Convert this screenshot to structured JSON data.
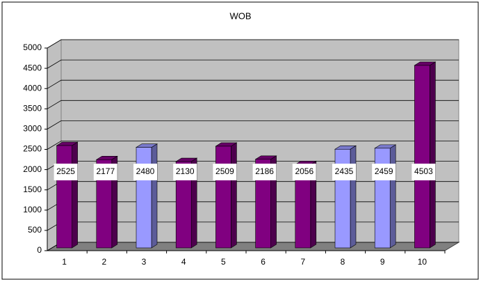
{
  "chart_data": {
    "type": "bar3d",
    "title": "WOB",
    "categories": [
      "1",
      "2",
      "3",
      "4",
      "5",
      "6",
      "7",
      "8",
      "9",
      "10"
    ],
    "values": [
      2525,
      2177,
      2480,
      2130,
      2509,
      2186,
      2056,
      2435,
      2459,
      4503
    ],
    "colors": [
      "#800080",
      "#800080",
      "#9999ff",
      "#800080",
      "#800080",
      "#800080",
      "#800080",
      "#9999ff",
      "#9999ff",
      "#800080"
    ],
    "ylim": [
      0,
      5000
    ],
    "yticks": [
      0,
      500,
      1000,
      1500,
      2000,
      2500,
      3000,
      3500,
      4000,
      4500,
      5000
    ],
    "grid": true
  }
}
